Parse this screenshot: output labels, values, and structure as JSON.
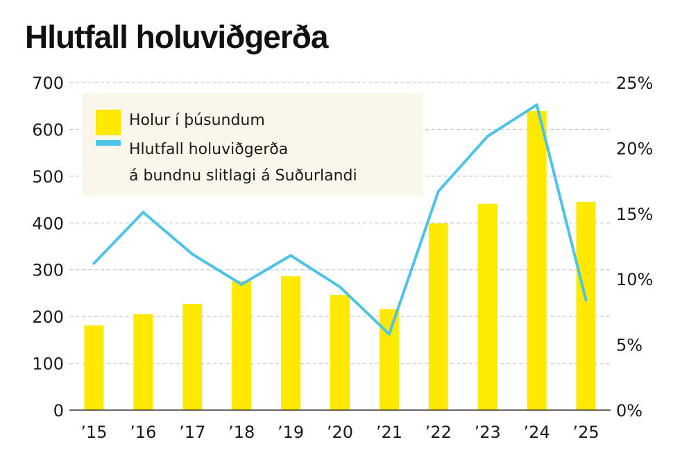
{
  "title": "Hlutfall holuviðgerða",
  "colors": {
    "bar": "#ffe900",
    "line": "#4ec3e8",
    "legend_bg": "#fbf6ea",
    "grid": "#c8c8c8",
    "axis": "#333333"
  },
  "chart_data": {
    "type": "bar",
    "title": "Hlutfall holuviðgerða",
    "categories": [
      "’15",
      "’16",
      "’17",
      "’18",
      "’19",
      "’20",
      "’21",
      "’22",
      "’23",
      "’24",
      "’25"
    ],
    "series": [
      {
        "name": "Holur í þúsundum",
        "type": "bar",
        "axis": "left",
        "values": [
          181,
          205,
          227,
          276,
          286,
          246,
          216,
          399,
          441,
          639,
          445
        ]
      },
      {
        "name": "Hlutfall holuviðgerða á bundnu slitlagi á Suðurlandi",
        "type": "line",
        "axis": "right",
        "values": [
          11.2,
          15.1,
          11.9,
          9.6,
          11.8,
          9.4,
          5.8,
          16.7,
          20.9,
          23.3,
          8.4
        ]
      }
    ],
    "legend": {
      "placement": "top-left",
      "entries": [
        {
          "lines": [
            "Holur í þúsundum"
          ]
        },
        {
          "lines": [
            "Hlutfall holuviðgerða",
            "á bundnu slitlagi á Suðurlandi"
          ]
        }
      ]
    },
    "y_left": {
      "ylim": [
        0,
        700
      ],
      "ticks": [
        "0",
        "100",
        "200",
        "300",
        "400",
        "500",
        "600",
        "700"
      ]
    },
    "y_right": {
      "ylim": [
        0,
        25
      ],
      "ticks": [
        "0%",
        "5%",
        "10%",
        "15%",
        "20%",
        "25%"
      ]
    },
    "grid": true
  }
}
